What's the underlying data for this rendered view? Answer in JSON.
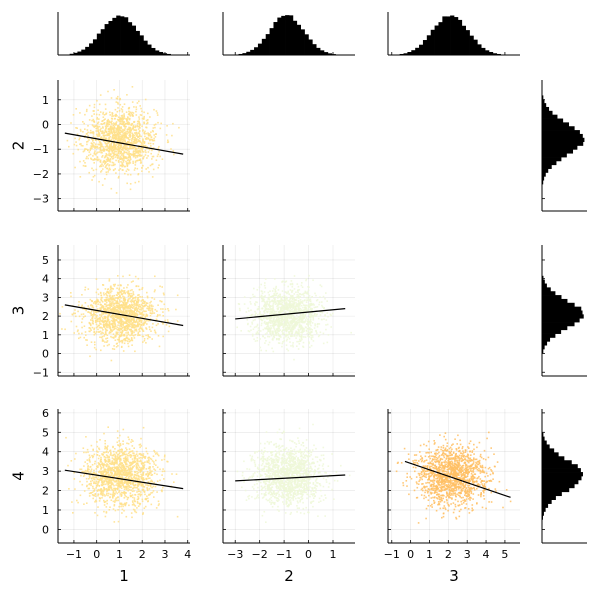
{
  "chart_data": {
    "type": "corner-plot",
    "variables": [
      "1",
      "2",
      "3",
      "4"
    ],
    "column_labels": [
      "1",
      "2",
      "3"
    ],
    "row_labels": [
      "2",
      "3",
      "4"
    ],
    "axes": {
      "x": [
        {
          "range": [
            -1.7,
            4.1
          ],
          "ticks": [
            -1,
            0,
            1,
            2,
            3,
            4
          ]
        },
        {
          "range": [
            -3.5,
            1.9
          ],
          "ticks": [
            -3,
            -2,
            -1,
            0,
            1
          ]
        },
        {
          "range": [
            -1.2,
            5.8
          ],
          "ticks": [
            -1,
            0,
            1,
            2,
            3,
            4,
            5
          ]
        }
      ],
      "y": [
        {
          "range": [
            -3.5,
            1.8
          ],
          "ticks": [
            -3,
            -2,
            -1,
            0,
            1
          ]
        },
        {
          "range": [
            -1.2,
            5.8
          ],
          "ticks": [
            -1,
            0,
            1,
            2,
            3,
            4,
            5
          ]
        },
        {
          "range": [
            -0.7,
            6.2
          ],
          "ticks": [
            0,
            1,
            2,
            3,
            4,
            5,
            6
          ]
        }
      ]
    },
    "scatter_panels": [
      {
        "row": 0,
        "col": 0,
        "x_mean": 1.0,
        "x_sd": 0.8,
        "y_mean": -0.6,
        "y_sd": 0.65,
        "color": "#ffe08a",
        "fit_line": {
          "x": [
            -1.4,
            3.8
          ],
          "y": [
            -0.35,
            -1.2
          ]
        }
      },
      {
        "row": 1,
        "col": 0,
        "x_mean": 1.0,
        "x_sd": 0.8,
        "y_mean": 2.1,
        "y_sd": 0.75,
        "color": "#ffe08a",
        "fit_line": {
          "x": [
            -1.4,
            3.8
          ],
          "y": [
            2.6,
            1.5
          ]
        }
      },
      {
        "row": 1,
        "col": 1,
        "x_mean": -0.9,
        "x_sd": 0.7,
        "y_mean": 2.1,
        "y_sd": 0.7,
        "color": "#eff8d8",
        "fit_line": {
          "x": [
            -3.0,
            1.5
          ],
          "y": [
            1.85,
            2.4
          ]
        }
      },
      {
        "row": 2,
        "col": 0,
        "x_mean": 1.0,
        "x_sd": 0.8,
        "y_mean": 2.8,
        "y_sd": 0.8,
        "color": "#ffe08a",
        "fit_line": {
          "x": [
            -1.4,
            3.8
          ],
          "y": [
            3.05,
            2.1
          ]
        }
      },
      {
        "row": 2,
        "col": 1,
        "x_mean": -0.9,
        "x_sd": 0.7,
        "y_mean": 2.8,
        "y_sd": 0.75,
        "color": "#eff8d8",
        "fit_line": {
          "x": [
            -3.0,
            1.5
          ],
          "y": [
            2.5,
            2.8
          ]
        }
      },
      {
        "row": 2,
        "col": 2,
        "x_mean": 2.1,
        "x_sd": 0.95,
        "y_mean": 2.8,
        "y_sd": 0.75,
        "color": "#ffc064",
        "fit_line": {
          "x": [
            -0.3,
            5.3
          ],
          "y": [
            3.5,
            1.65
          ]
        }
      }
    ],
    "top_histograms": [
      {
        "col": 0,
        "mean": 1.0,
        "sd": 0.8
      },
      {
        "col": 1,
        "mean": -0.9,
        "sd": 0.7
      },
      {
        "col": 2,
        "mean": 2.1,
        "sd": 0.95
      }
    ],
    "right_histograms": [
      {
        "row": 0,
        "mean": -0.6,
        "sd": 0.65
      },
      {
        "row": 1,
        "mean": 2.1,
        "sd": 0.75
      },
      {
        "row": 2,
        "mean": 2.8,
        "sd": 0.8
      }
    ],
    "bar_color": "#000000",
    "fit_line_color": "#000000",
    "grid": true
  }
}
